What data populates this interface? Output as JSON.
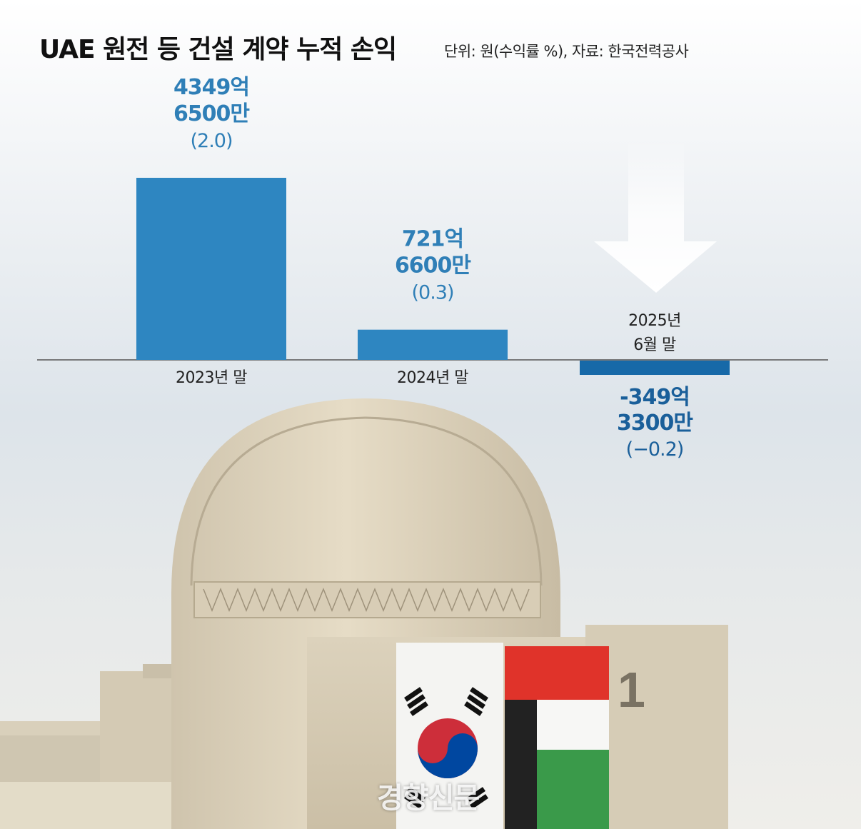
{
  "header": {
    "title": "UAE 원전 등 건설 계약 누적 손익",
    "unit_source": "단위: 원(수익률 %), 자료: 한국전력공사"
  },
  "chart_data": {
    "type": "bar",
    "categories": [
      "2023년 말",
      "2024년 말",
      "2025년 6월 말"
    ],
    "series": [
      {
        "values": [
          434965000000,
          72166000000,
          -34933000000
        ]
      }
    ],
    "return_rates": [
      2.0,
      0.3,
      -0.2
    ],
    "value_labels": [
      [
        "4349억",
        "6500만",
        "(2.0)"
      ],
      [
        "721억",
        "6600만",
        "(0.3)"
      ],
      [
        "-349억",
        "3300만",
        "(−0.2)"
      ]
    ],
    "category_labels": [
      [
        "2023년 말"
      ],
      [
        "2024년 말"
      ],
      [
        "2025년",
        "6월 말"
      ]
    ],
    "colors": {
      "bar": "#2e86c1",
      "bar_negative": "#1769a8",
      "label": "#2f7fb7",
      "label_negative": "#1a5f9a",
      "axis": "#555555"
    },
    "annotation": "down-arrow-over-2025"
  },
  "photo": {
    "flag_number": "1",
    "watermark": "경향신문"
  }
}
